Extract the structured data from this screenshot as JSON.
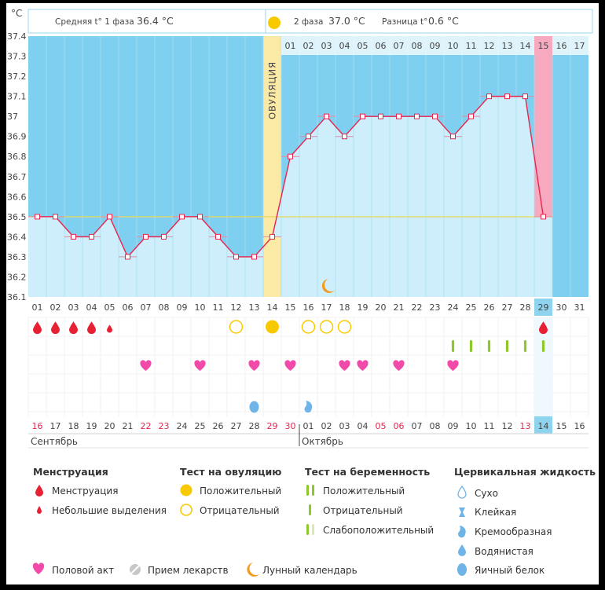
{
  "chart_data": {
    "type": "line",
    "title": "Basal body temperature chart",
    "unit": "°C",
    "ylim": [
      36.1,
      37.4
    ],
    "y_ticks": [
      "37.4",
      "37.3",
      "37.2",
      "37.1",
      "37",
      "36.9",
      "36.8",
      "36.7",
      "36.6",
      "36.5",
      "36.4",
      "36.3",
      "36.2",
      "36.1"
    ],
    "coverline": 36.5,
    "ovulation_day_index": 13,
    "ovulation_label": "ОВУЛЯЦИЯ",
    "highlight_day_index": 28,
    "header": {
      "phase1_label": "Средняя t° 1 фаза",
      "phase1_value": "36.4 °C",
      "phase2_label": "2 фаза",
      "phase2_value": "37.0 °C",
      "diff_label": "Разница t°",
      "diff_value": "0.6 °C"
    },
    "phase2_day_labels": [
      "01",
      "02",
      "03",
      "04",
      "05",
      "06",
      "07",
      "08",
      "09",
      "10",
      "11",
      "12",
      "13",
      "14",
      "15",
      "16",
      "17"
    ],
    "cycle_days": [
      "01",
      "02",
      "03",
      "04",
      "05",
      "06",
      "07",
      "08",
      "09",
      "10",
      "11",
      "12",
      "13",
      "14",
      "15",
      "16",
      "17",
      "18",
      "19",
      "20",
      "21",
      "22",
      "23",
      "24",
      "25",
      "26",
      "27",
      "28",
      "29",
      "30",
      "31"
    ],
    "temperatures": [
      36.5,
      36.5,
      36.4,
      36.4,
      36.5,
      36.3,
      36.4,
      36.4,
      36.5,
      36.5,
      36.4,
      36.3,
      36.3,
      36.4,
      36.8,
      36.9,
      37.0,
      36.9,
      37.0,
      37.0,
      37.0,
      37.0,
      37.0,
      36.9,
      37.0,
      37.1,
      37.1,
      37.1,
      36.5,
      null,
      null
    ],
    "calendar_dates": [
      "16",
      "17",
      "18",
      "19",
      "20",
      "21",
      "22",
      "23",
      "24",
      "25",
      "26",
      "27",
      "28",
      "29",
      "30",
      "01",
      "02",
      "03",
      "04",
      "05",
      "06",
      "07",
      "08",
      "09",
      "10",
      "11",
      "12",
      "13",
      "14",
      "15",
      "16"
    ],
    "red_date_indices": [
      0,
      6,
      7,
      13,
      14,
      19,
      20,
      27
    ],
    "month_labels": [
      {
        "text": "Сентябрь",
        "start_index": 0
      },
      {
        "text": "Октябрь",
        "start_index": 15
      }
    ],
    "moon_day_index": 16,
    "markers": {
      "menstruation": [
        0,
        1,
        2,
        3
      ],
      "spotting": [
        4
      ],
      "menstruation_late": [
        28
      ],
      "ovulation_positive": [
        13
      ],
      "ovulation_negative": [
        11,
        15,
        16,
        17
      ],
      "pregnancy_positive": [
        23,
        24,
        25,
        26,
        27,
        28
      ],
      "intercourse": [
        6,
        9,
        12,
        14,
        17,
        18,
        20,
        23
      ],
      "cervical_creamy": [
        15
      ],
      "cervical_egg_white": [
        12
      ]
    }
  },
  "legend": {
    "menstruation_title": "Менструация",
    "menstruation_item": "Менструация",
    "spotting_item": "Небольшие выделения",
    "ovulation_title": "Тест на овуляцию",
    "ov_positive": "Положительный",
    "ov_negative": "Отрицательный",
    "pregnancy_title": "Тест на беременность",
    "preg_positive": "Положительный",
    "preg_negative": "Отрицательный",
    "preg_weak": "Слабоположительный",
    "cervical_title": "Цервикальная жидкость",
    "cerv_dry": "Сухо",
    "cerv_sticky": "Клейкая",
    "cerv_creamy": "Кремообразная",
    "cerv_watery": "Водянистая",
    "cerv_egg": "Яичный белок",
    "intercourse": "Половой акт",
    "medication": "Прием лекарств",
    "lunar": "Лунный календарь"
  },
  "colors": {
    "phase_top": "#7fd0f0",
    "phase_fill": "#cdeefa",
    "temp_line": "#e8254e",
    "ovulation_band": "#fbe9a6",
    "highlight_band": "#f6a9bf",
    "coverline": "#e8d860",
    "drop_red": "#e82034",
    "heart": "#f24aa8",
    "yellow": "#f9c900",
    "green": "#8fc82a",
    "blue_drop": "#6fb4e6"
  }
}
